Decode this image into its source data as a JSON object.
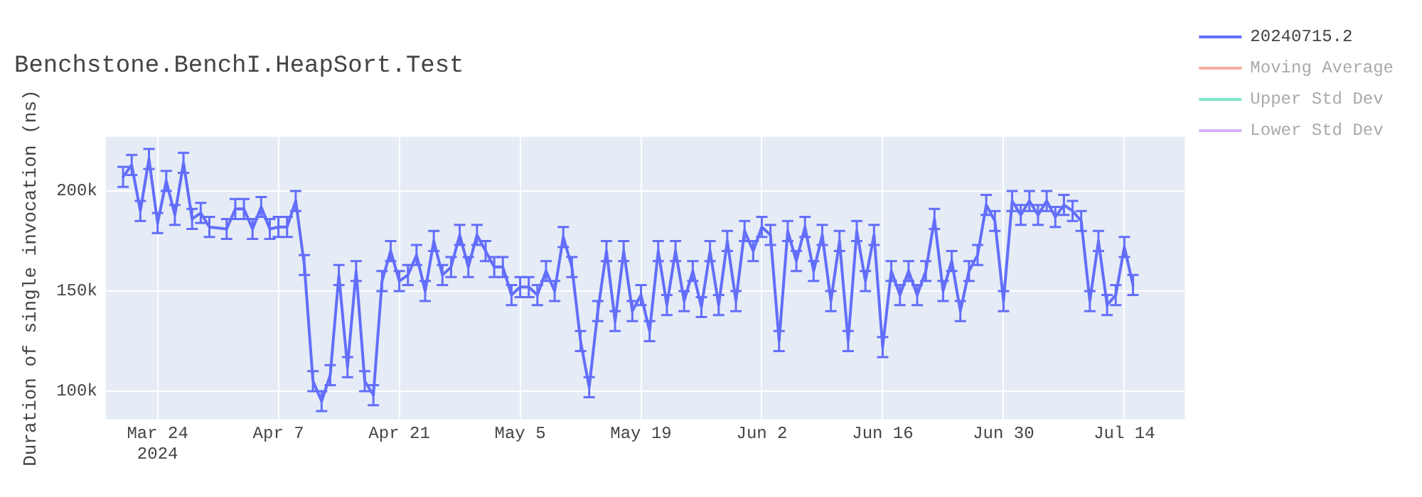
{
  "chart_data": {
    "type": "line",
    "title": "Benchstone.BenchI.HeapSort.Test",
    "ylabel": "Duration of single invocation (ns)",
    "x": [
      "2024-03-20",
      "2024-03-21",
      "2024-03-22",
      "2024-03-23",
      "2024-03-24",
      "2024-03-25",
      "2024-03-26",
      "2024-03-27",
      "2024-03-28",
      "2024-03-29",
      "2024-03-30",
      "2024-04-01",
      "2024-04-02",
      "2024-04-03",
      "2024-04-04",
      "2024-04-05",
      "2024-04-06",
      "2024-04-07",
      "2024-04-08",
      "2024-04-09",
      "2024-04-10",
      "2024-04-11",
      "2024-04-12",
      "2024-04-13",
      "2024-04-14",
      "2024-04-15",
      "2024-04-16",
      "2024-04-17",
      "2024-04-18",
      "2024-04-19",
      "2024-04-20",
      "2024-04-21",
      "2024-04-22",
      "2024-04-23",
      "2024-04-24",
      "2024-04-25",
      "2024-04-26",
      "2024-04-27",
      "2024-04-28",
      "2024-04-29",
      "2024-04-30",
      "2024-05-01",
      "2024-05-02",
      "2024-05-03",
      "2024-05-04",
      "2024-05-05",
      "2024-05-06",
      "2024-05-07",
      "2024-05-08",
      "2024-05-09",
      "2024-05-10",
      "2024-05-11",
      "2024-05-12",
      "2024-05-13",
      "2024-05-14",
      "2024-05-15",
      "2024-05-16",
      "2024-05-17",
      "2024-05-18",
      "2024-05-19",
      "2024-05-20",
      "2024-05-21",
      "2024-05-22",
      "2024-05-23",
      "2024-05-24",
      "2024-05-25",
      "2024-05-26",
      "2024-05-27",
      "2024-05-28",
      "2024-05-29",
      "2024-05-30",
      "2024-05-31",
      "2024-06-01",
      "2024-06-02",
      "2024-06-03",
      "2024-06-04",
      "2024-06-05",
      "2024-06-06",
      "2024-06-07",
      "2024-06-08",
      "2024-06-09",
      "2024-06-10",
      "2024-06-11",
      "2024-06-12",
      "2024-06-13",
      "2024-06-14",
      "2024-06-15",
      "2024-06-16",
      "2024-06-17",
      "2024-06-18",
      "2024-06-19",
      "2024-06-20",
      "2024-06-21",
      "2024-06-22",
      "2024-06-23",
      "2024-06-24",
      "2024-06-25",
      "2024-06-26",
      "2024-06-27",
      "2024-06-28",
      "2024-06-29",
      "2024-06-30",
      "2024-07-01",
      "2024-07-02",
      "2024-07-03",
      "2024-07-04",
      "2024-07-05",
      "2024-07-06",
      "2024-07-07",
      "2024-07-08",
      "2024-07-09",
      "2024-07-10",
      "2024-07-11",
      "2024-07-12",
      "2024-07-13",
      "2024-07-14",
      "2024-07-15"
    ],
    "series": [
      {
        "name": "20240715.2",
        "color": "#636efa",
        "values": [
          207000,
          213000,
          190000,
          216000,
          184000,
          205000,
          188000,
          214000,
          186000,
          189000,
          182000,
          181000,
          191000,
          191000,
          181000,
          192000,
          181000,
          182000,
          182000,
          195000,
          163000,
          105000,
          95000,
          108000,
          158000,
          112000,
          160000,
          105000,
          98000,
          155000,
          170000,
          155000,
          158000,
          168000,
          150000,
          175000,
          158000,
          162000,
          178000,
          162000,
          178000,
          170000,
          162000,
          162000,
          148000,
          152000,
          152000,
          148000,
          160000,
          150000,
          177000,
          162000,
          125000,
          102000,
          140000,
          170000,
          135000,
          170000,
          140000,
          148000,
          130000,
          170000,
          143000,
          170000,
          145000,
          160000,
          142000,
          170000,
          143000,
          175000,
          145000,
          180000,
          170000,
          182000,
          178000,
          125000,
          180000,
          165000,
          182000,
          160000,
          178000,
          145000,
          175000,
          125000,
          180000,
          155000,
          178000,
          122000,
          160000,
          148000,
          160000,
          148000,
          160000,
          186000,
          150000,
          165000,
          140000,
          160000,
          168000,
          193000,
          185000,
          145000,
          195000,
          188000,
          195000,
          188000,
          195000,
          187000,
          193000,
          190000,
          185000,
          145000,
          175000,
          143000,
          148000,
          172000,
          153000
        ],
        "errors": [
          5000,
          5000,
          5000,
          5000,
          5000,
          5000,
          5000,
          5000,
          5000,
          5000,
          5000,
          5000,
          5000,
          5000,
          5000,
          5000,
          5000,
          5000,
          5000,
          5000,
          5000,
          5000,
          5000,
          5000,
          5000,
          5000,
          5000,
          5000,
          5000,
          5000,
          5000,
          5000,
          5000,
          5000,
          5000,
          5000,
          5000,
          5000,
          5000,
          5000,
          5000,
          5000,
          5000,
          5000,
          5000,
          5000,
          5000,
          5000,
          5000,
          5000,
          5000,
          5000,
          5000,
          5000,
          5000,
          5000,
          5000,
          5000,
          5000,
          5000,
          5000,
          5000,
          5000,
          5000,
          5000,
          5000,
          5000,
          5000,
          5000,
          5000,
          5000,
          5000,
          5000,
          5000,
          5000,
          5000,
          5000,
          5000,
          5000,
          5000,
          5000,
          5000,
          5000,
          5000,
          5000,
          5000,
          5000,
          5000,
          5000,
          5000,
          5000,
          5000,
          5000,
          5000,
          5000,
          5000,
          5000,
          5000,
          5000,
          5000,
          5000,
          5000,
          5000,
          5000,
          5000,
          5000,
          5000,
          5000,
          5000,
          5000,
          5000,
          5000,
          5000,
          5000,
          5000,
          5000,
          5000
        ]
      },
      {
        "name": "Moving Average",
        "color": "#ef553b",
        "values": [
          null,
          null,
          null,
          null,
          null,
          null,
          null,
          null,
          null,
          null,
          null,
          null,
          null,
          null,
          null,
          null,
          null,
          null,
          null,
          null,
          null,
          null,
          null,
          null,
          null,
          null,
          null,
          null,
          null,
          null,
          null,
          null,
          null,
          null,
          null,
          null,
          null,
          null,
          null,
          null,
          null,
          null,
          null,
          null,
          null,
          null,
          null,
          null,
          null,
          null,
          null,
          null,
          null,
          null,
          null,
          null,
          null,
          null,
          null,
          null,
          null,
          null,
          null,
          null,
          null,
          null,
          null,
          null,
          null,
          null,
          null,
          null,
          null,
          null,
          null,
          null,
          null,
          null,
          null,
          null,
          null,
          null,
          null,
          null,
          null,
          null,
          null,
          null,
          null,
          null,
          null,
          null,
          null,
          null,
          null,
          null,
          null,
          null,
          null,
          null,
          null,
          null,
          null,
          null,
          null,
          null,
          null,
          null,
          null,
          null,
          null,
          null,
          null,
          null,
          null,
          null,
          null
        ]
      },
      {
        "name": "Upper Std Dev",
        "color": "#00cc96",
        "values": [
          null,
          null,
          null,
          null,
          null,
          null,
          null,
          null,
          null,
          null,
          null,
          null,
          null,
          null,
          null,
          null,
          null,
          null,
          null,
          null,
          null,
          null,
          null,
          null,
          null,
          null,
          null,
          null,
          null,
          null,
          null,
          null,
          null,
          null,
          null,
          null,
          null,
          null,
          null,
          null,
          null,
          null,
          null,
          null,
          null,
          null,
          null,
          null,
          null,
          null,
          null,
          null,
          null,
          null,
          null,
          null,
          null,
          null,
          null,
          null,
          null,
          null,
          null,
          null,
          null,
          null,
          null,
          null,
          null,
          null,
          null,
          null,
          null,
          null,
          null,
          null,
          null,
          null,
          null,
          null,
          null,
          null,
          null,
          null,
          null,
          null,
          null,
          null,
          null,
          null,
          null,
          null,
          null,
          null,
          null,
          null,
          null,
          null,
          null,
          null,
          null,
          null,
          null,
          null,
          null,
          null,
          null,
          null,
          null,
          null,
          null,
          null,
          null,
          null,
          null,
          null,
          null
        ]
      },
      {
        "name": "Lower Std Dev",
        "color": "#ab63fa",
        "values": [
          null,
          null,
          null,
          null,
          null,
          null,
          null,
          null,
          null,
          null,
          null,
          null,
          null,
          null,
          null,
          null,
          null,
          null,
          null,
          null,
          null,
          null,
          null,
          null,
          null,
          null,
          null,
          null,
          null,
          null,
          null,
          null,
          null,
          null,
          null,
          null,
          null,
          null,
          null,
          null,
          null,
          null,
          null,
          null,
          null,
          null,
          null,
          null,
          null,
          null,
          null,
          null,
          null,
          null,
          null,
          null,
          null,
          null,
          null,
          null,
          null,
          null,
          null,
          null,
          null,
          null,
          null,
          null,
          null,
          null,
          null,
          null,
          null,
          null,
          null,
          null,
          null,
          null,
          null,
          null,
          null,
          null,
          null,
          null,
          null,
          null,
          null,
          null,
          null,
          null,
          null,
          null,
          null,
          null,
          null,
          null,
          null,
          null,
          null,
          null,
          null,
          null,
          null,
          null,
          null,
          null,
          null,
          null,
          null,
          null,
          null,
          null,
          null,
          null,
          null,
          null,
          null
        ]
      }
    ],
    "xlim": [
      "2024-03-18",
      "2024-07-21"
    ],
    "xticks": [
      {
        "value": "2024-03-24",
        "label": "Mar 24\n2024"
      },
      {
        "value": "2024-04-07",
        "label": "Apr 7"
      },
      {
        "value": "2024-04-21",
        "label": "Apr 21"
      },
      {
        "value": "2024-05-05",
        "label": "May 5"
      },
      {
        "value": "2024-05-19",
        "label": "May 19"
      },
      {
        "value": "2024-06-02",
        "label": "Jun 2"
      },
      {
        "value": "2024-06-16",
        "label": "Jun 16"
      },
      {
        "value": "2024-06-30",
        "label": "Jun 30"
      },
      {
        "value": "2024-07-14",
        "label": "Jul 14"
      }
    ],
    "ylim": [
      86000,
      227000
    ],
    "yticks": [
      {
        "value": 100000,
        "label": "100k"
      },
      {
        "value": 150000,
        "label": "150k"
      },
      {
        "value": 200000,
        "label": "200k"
      }
    ],
    "grid": true,
    "legend": "right",
    "marker": "none",
    "line_style": "solid"
  }
}
